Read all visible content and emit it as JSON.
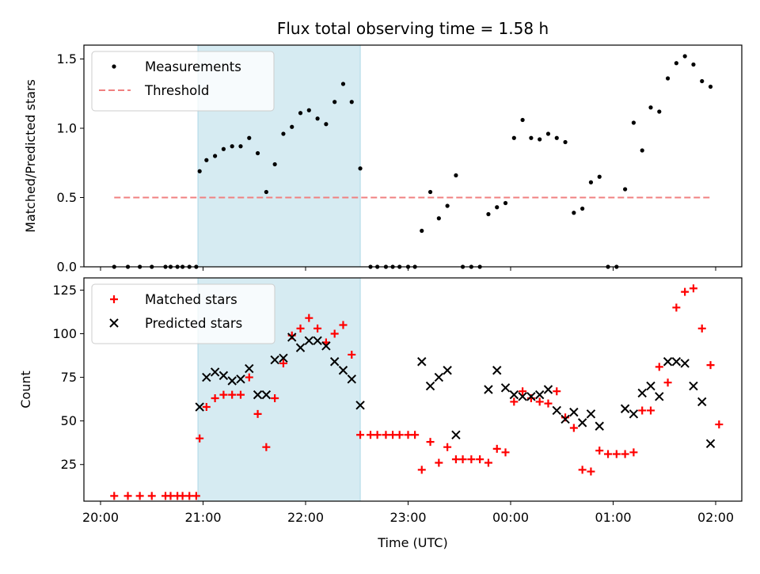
{
  "chart_data": {
    "type": "scatter",
    "title": "Flux total observing time = 1.58 h",
    "xlabel": "Time (UTC)",
    "x_ticks": [
      "20:00",
      "21:00",
      "22:00",
      "23:00",
      "00:00",
      "01:00",
      "02:00"
    ],
    "x_range": [
      "20:00",
      "02:15"
    ],
    "highlight_span": [
      "20:57",
      "22:32"
    ],
    "colors": {
      "measurements": "#000000",
      "threshold": "#f08080",
      "matched": "#ff0000",
      "predicted": "#000000",
      "span": "#add8e6"
    },
    "panels": [
      {
        "name": "top",
        "ylabel": "Matched/Predicted stars",
        "ylim": [
          0,
          1.6
        ],
        "yticks": [
          "0.0",
          "0.5",
          "1.0",
          "1.5"
        ],
        "legend": "top-left",
        "threshold": {
          "name": "Threshold",
          "value": 0.5,
          "x_range": [
            "20:08",
            "01:58"
          ]
        },
        "series": [
          {
            "name": "Measurements",
            "marker": "dot",
            "points": [
              [
                "20:08",
                0
              ],
              [
                "20:16",
                0
              ],
              [
                "20:23",
                0
              ],
              [
                "20:30",
                0
              ],
              [
                "20:38",
                0
              ],
              [
                "20:41",
                0
              ],
              [
                "20:45",
                0
              ],
              [
                "20:48",
                0
              ],
              [
                "20:52",
                0
              ],
              [
                "20:56",
                0
              ],
              [
                "20:58",
                0.69
              ],
              [
                "21:02",
                0.77
              ],
              [
                "21:07",
                0.8
              ],
              [
                "21:12",
                0.85
              ],
              [
                "21:17",
                0.87
              ],
              [
                "21:22",
                0.87
              ],
              [
                "21:27",
                0.93
              ],
              [
                "21:32",
                0.82
              ],
              [
                "21:37",
                0.54
              ],
              [
                "21:42",
                0.74
              ],
              [
                "21:47",
                0.96
              ],
              [
                "21:52",
                1.01
              ],
              [
                "21:57",
                1.11
              ],
              [
                "22:02",
                1.13
              ],
              [
                "22:07",
                1.07
              ],
              [
                "22:12",
                1.03
              ],
              [
                "22:17",
                1.19
              ],
              [
                "22:22",
                1.32
              ],
              [
                "22:27",
                1.19
              ],
              [
                "22:32",
                0.71
              ],
              [
                "22:38",
                0
              ],
              [
                "22:42",
                0
              ],
              [
                "22:47",
                0
              ],
              [
                "22:51",
                0
              ],
              [
                "22:55",
                0
              ],
              [
                "23:00",
                0
              ],
              [
                "23:04",
                0
              ],
              [
                "23:08",
                0.26
              ],
              [
                "23:13",
                0.54
              ],
              [
                "23:18",
                0.35
              ],
              [
                "23:23",
                0.44
              ],
              [
                "23:28",
                0.66
              ],
              [
                "23:32",
                0
              ],
              [
                "23:37",
                0
              ],
              [
                "23:42",
                0
              ],
              [
                "23:47",
                0.38
              ],
              [
                "23:52",
                0.43
              ],
              [
                "23:57",
                0.46
              ],
              [
                "00:02",
                0.93
              ],
              [
                "00:07",
                1.06
              ],
              [
                "00:12",
                0.93
              ],
              [
                "00:17",
                0.92
              ],
              [
                "00:22",
                0.96
              ],
              [
                "00:27",
                0.93
              ],
              [
                "00:32",
                0.9
              ],
              [
                "00:37",
                0.39
              ],
              [
                "00:42",
                0.42
              ],
              [
                "00:47",
                0.61
              ],
              [
                "00:52",
                0.65
              ],
              [
                "00:57",
                0
              ],
              [
                "01:02",
                0
              ],
              [
                "01:07",
                0.56
              ],
              [
                "01:12",
                1.04
              ],
              [
                "01:17",
                0.84
              ],
              [
                "01:22",
                1.15
              ],
              [
                "01:27",
                1.12
              ],
              [
                "01:32",
                1.36
              ],
              [
                "01:37",
                1.47
              ],
              [
                "01:42",
                1.52
              ],
              [
                "01:47",
                1.46
              ],
              [
                "01:52",
                1.34
              ],
              [
                "01:57",
                1.3
              ]
            ]
          }
        ]
      },
      {
        "name": "bottom",
        "ylabel": "Count",
        "ylim": [
          4,
          132
        ],
        "yticks": [
          "25",
          "50",
          "75",
          "100",
          "125"
        ],
        "legend": "top-left",
        "series": [
          {
            "name": "Matched stars",
            "marker": "plus",
            "points": [
              [
                "20:08",
                7
              ],
              [
                "20:16",
                7
              ],
              [
                "20:23",
                7
              ],
              [
                "20:30",
                7
              ],
              [
                "20:38",
                7
              ],
              [
                "20:41",
                7
              ],
              [
                "20:45",
                7
              ],
              [
                "20:48",
                7
              ],
              [
                "20:52",
                7
              ],
              [
                "20:56",
                7
              ],
              [
                "20:58",
                40
              ],
              [
                "21:02",
                58
              ],
              [
                "21:07",
                63
              ],
              [
                "21:12",
                65
              ],
              [
                "21:17",
                65
              ],
              [
                "21:22",
                65
              ],
              [
                "21:27",
                75
              ],
              [
                "21:32",
                54
              ],
              [
                "21:37",
                35
              ],
              [
                "21:42",
                63
              ],
              [
                "21:47",
                83
              ],
              [
                "21:52",
                99
              ],
              [
                "21:57",
                103
              ],
              [
                "22:02",
                109
              ],
              [
                "22:07",
                103
              ],
              [
                "22:12",
                95
              ],
              [
                "22:17",
                100
              ],
              [
                "22:22",
                105
              ],
              [
                "22:27",
                88
              ],
              [
                "22:32",
                42
              ],
              [
                "22:38",
                42
              ],
              [
                "22:42",
                42
              ],
              [
                "22:47",
                42
              ],
              [
                "22:51",
                42
              ],
              [
                "22:55",
                42
              ],
              [
                "23:00",
                42
              ],
              [
                "23:04",
                42
              ],
              [
                "23:08",
                22
              ],
              [
                "23:13",
                38
              ],
              [
                "23:18",
                26
              ],
              [
                "23:23",
                35
              ],
              [
                "23:28",
                28
              ],
              [
                "23:32",
                28
              ],
              [
                "23:37",
                28
              ],
              [
                "23:42",
                28
              ],
              [
                "23:47",
                26
              ],
              [
                "23:52",
                34
              ],
              [
                "23:57",
                32
              ],
              [
                "00:02",
                61
              ],
              [
                "00:07",
                67
              ],
              [
                "00:12",
                63
              ],
              [
                "00:17",
                61
              ],
              [
                "00:22",
                60
              ],
              [
                "00:27",
                67
              ],
              [
                "00:32",
                52
              ],
              [
                "00:37",
                46
              ],
              [
                "00:42",
                22
              ],
              [
                "00:47",
                21
              ],
              [
                "00:52",
                33
              ],
              [
                "00:57",
                31
              ],
              [
                "01:02",
                31
              ],
              [
                "01:07",
                31
              ],
              [
                "01:12",
                32
              ],
              [
                "01:17",
                56
              ],
              [
                "01:22",
                56
              ],
              [
                "01:27",
                81
              ],
              [
                "01:32",
                72
              ],
              [
                "01:37",
                115
              ],
              [
                "01:42",
                124
              ],
              [
                "01:47",
                126
              ],
              [
                "01:52",
                103
              ],
              [
                "01:57",
                82
              ],
              [
                "02:02",
                48
              ]
            ]
          },
          {
            "name": "Predicted stars",
            "marker": "x",
            "points": [
              [
                "20:58",
                58
              ],
              [
                "21:02",
                75
              ],
              [
                "21:07",
                78
              ],
              [
                "21:12",
                76
              ],
              [
                "21:17",
                73
              ],
              [
                "21:22",
                74
              ],
              [
                "21:27",
                80
              ],
              [
                "21:32",
                65
              ],
              [
                "21:37",
                65
              ],
              [
                "21:42",
                85
              ],
              [
                "21:47",
                86
              ],
              [
                "21:52",
                98
              ],
              [
                "21:57",
                92
              ],
              [
                "22:02",
                96
              ],
              [
                "22:07",
                96
              ],
              [
                "22:12",
                93
              ],
              [
                "22:17",
                84
              ],
              [
                "22:22",
                79
              ],
              [
                "22:27",
                74
              ],
              [
                "22:32",
                59
              ],
              [
                "23:08",
                84
              ],
              [
                "23:13",
                70
              ],
              [
                "23:18",
                75
              ],
              [
                "23:23",
                79
              ],
              [
                "23:28",
                42
              ],
              [
                "23:47",
                68
              ],
              [
                "23:52",
                79
              ],
              [
                "23:57",
                69
              ],
              [
                "00:02",
                65
              ],
              [
                "00:07",
                64
              ],
              [
                "00:12",
                64
              ],
              [
                "00:17",
                65
              ],
              [
                "00:22",
                68
              ],
              [
                "00:27",
                56
              ],
              [
                "00:32",
                51
              ],
              [
                "00:37",
                55
              ],
              [
                "00:42",
                49
              ],
              [
                "00:47",
                54
              ],
              [
                "00:52",
                47
              ],
              [
                "01:07",
                57
              ],
              [
                "01:12",
                54
              ],
              [
                "01:17",
                66
              ],
              [
                "01:22",
                70
              ],
              [
                "01:27",
                64
              ],
              [
                "01:32",
                84
              ],
              [
                "01:37",
                84
              ],
              [
                "01:42",
                83
              ],
              [
                "01:47",
                70
              ],
              [
                "01:52",
                61
              ],
              [
                "01:57",
                37
              ]
            ]
          }
        ]
      }
    ]
  }
}
